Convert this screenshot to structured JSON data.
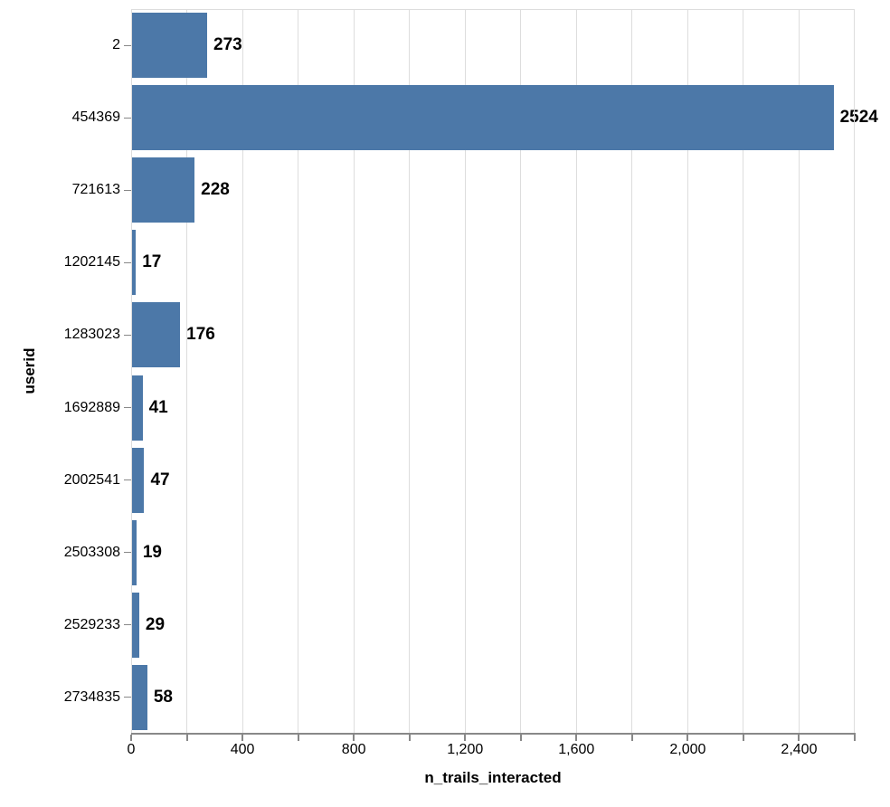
{
  "chart_data": {
    "type": "bar",
    "orientation": "horizontal",
    "title": "",
    "xlabel": "n_trails_interacted",
    "ylabel": "userid",
    "categories": [
      "2",
      "454369",
      "721613",
      "1202145",
      "1283023",
      "1692889",
      "2002541",
      "2503308",
      "2529233",
      "2734835"
    ],
    "values": [
      273,
      2524,
      228,
      17,
      176,
      41,
      47,
      19,
      29,
      58
    ],
    "value_labels": [
      "273",
      "2524",
      "228",
      "17",
      "176",
      "41",
      "47",
      "19",
      "29",
      "58"
    ],
    "xlim": [
      0,
      2600
    ],
    "x_tick_step": 200,
    "x_label_step": 400,
    "x_tick_labels": [
      "0",
      "400",
      "800",
      "1,200",
      "1,600",
      "2,000",
      "2,400"
    ],
    "grid": true,
    "legend": null,
    "colors": {
      "bar": "#4c78a8",
      "gridline": "#dddddd",
      "axis_line": "#888888",
      "label": "#000000"
    }
  }
}
